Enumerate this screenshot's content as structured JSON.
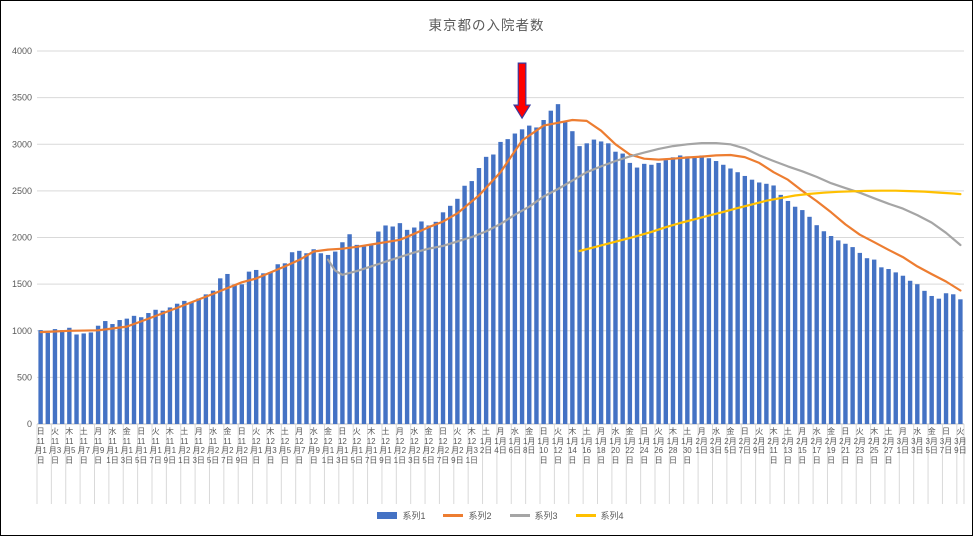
{
  "chart_data": {
    "type": "bar",
    "title": "東京都の入院者数",
    "grid": true,
    "legend_position": "bottom",
    "text_color": "#595959",
    "grid_color": "#D9D9D9",
    "axis_color": "#BFBFBF",
    "ylim": [
      0,
      4000
    ],
    "y_tick_labels": [
      "0",
      "500",
      "1000",
      "1500",
      "2000",
      "2500",
      "3000",
      "3500",
      "4000"
    ],
    "n_categories": 129,
    "x_label_every": 2,
    "x_labels": [
      {
        "w": "日",
        "d": "11月1日"
      },
      {
        "w": "火",
        "d": "11月3日"
      },
      {
        "w": "木",
        "d": "11月5日"
      },
      {
        "w": "土",
        "d": "11月7日"
      },
      {
        "w": "月",
        "d": "11月9日"
      },
      {
        "w": "水",
        "d": "11月11日"
      },
      {
        "w": "金",
        "d": "11月13日"
      },
      {
        "w": "日",
        "d": "11月15日"
      },
      {
        "w": "火",
        "d": "11月17日"
      },
      {
        "w": "木",
        "d": "11月19日"
      },
      {
        "w": "土",
        "d": "11月21日"
      },
      {
        "w": "月",
        "d": "11月23日"
      },
      {
        "w": "水",
        "d": "11月25日"
      },
      {
        "w": "金",
        "d": "11月27日"
      },
      {
        "w": "日",
        "d": "11月29日"
      },
      {
        "w": "火",
        "d": "12月1日"
      },
      {
        "w": "木",
        "d": "12月3日"
      },
      {
        "w": "土",
        "d": "12月5日"
      },
      {
        "w": "月",
        "d": "12月7日"
      },
      {
        "w": "水",
        "d": "12月9日"
      },
      {
        "w": "金",
        "d": "12月11日"
      },
      {
        "w": "日",
        "d": "12月13日"
      },
      {
        "w": "火",
        "d": "12月15日"
      },
      {
        "w": "木",
        "d": "12月17日"
      },
      {
        "w": "土",
        "d": "12月19日"
      },
      {
        "w": "月",
        "d": "12月21日"
      },
      {
        "w": "水",
        "d": "12月23日"
      },
      {
        "w": "金",
        "d": "12月25日"
      },
      {
        "w": "日",
        "d": "12月27日"
      },
      {
        "w": "火",
        "d": "12月29日"
      },
      {
        "w": "木",
        "d": "12月31日"
      },
      {
        "w": "土",
        "d": "1月2日"
      },
      {
        "w": "月",
        "d": "1月4日"
      },
      {
        "w": "水",
        "d": "1月6日"
      },
      {
        "w": "金",
        "d": "1月8日"
      },
      {
        "w": "日",
        "d": "1月10日"
      },
      {
        "w": "火",
        "d": "1月12日"
      },
      {
        "w": "木",
        "d": "1月14日"
      },
      {
        "w": "土",
        "d": "1月16日"
      },
      {
        "w": "月",
        "d": "1月18日"
      },
      {
        "w": "水",
        "d": "1月20日"
      },
      {
        "w": "金",
        "d": "1月22日"
      },
      {
        "w": "日",
        "d": "1月24日"
      },
      {
        "w": "火",
        "d": "1月26日"
      },
      {
        "w": "木",
        "d": "1月28日"
      },
      {
        "w": "土",
        "d": "1月30日"
      },
      {
        "w": "月",
        "d": "2月1日"
      },
      {
        "w": "水",
        "d": "2月3日"
      },
      {
        "w": "金",
        "d": "2月5日"
      },
      {
        "w": "日",
        "d": "2月7日"
      },
      {
        "w": "火",
        "d": "2月9日"
      },
      {
        "w": "木",
        "d": "2月11日"
      },
      {
        "w": "土",
        "d": "2月13日"
      },
      {
        "w": "月",
        "d": "2月15日"
      },
      {
        "w": "水",
        "d": "2月17日"
      },
      {
        "w": "金",
        "d": "2月19日"
      },
      {
        "w": "日",
        "d": "2月21日"
      },
      {
        "w": "火",
        "d": "2月23日"
      },
      {
        "w": "木",
        "d": "2月25日"
      },
      {
        "w": "土",
        "d": "2月27日"
      },
      {
        "w": "月",
        "d": "3月1日"
      },
      {
        "w": "水",
        "d": "3月3日"
      },
      {
        "w": "金",
        "d": "3月5日"
      },
      {
        "w": "日",
        "d": "3月7日"
      },
      {
        "w": "火",
        "d": "3月9日"
      }
    ],
    "series": [
      {
        "name": "系列1",
        "type": "bar",
        "color": "#4472C4",
        "values": [
          1007,
          978,
          1018,
          1007,
          1032,
          960,
          971,
          982,
          1054,
          1104,
          1072,
          1115,
          1130,
          1160,
          1145,
          1190,
          1225,
          1215,
          1250,
          1290,
          1320,
          1310,
          1345,
          1390,
          1430,
          1562,
          1609,
          1497,
          1498,
          1634,
          1652,
          1616,
          1627,
          1713,
          1723,
          1842,
          1857,
          1831,
          1874,
          1831,
          1813,
          1849,
          1949,
          2035,
          1921,
          1903,
          1928,
          2064,
          2129,
          2118,
          2154,
          2082,
          2107,
          2172,
          2129,
          2168,
          2270,
          2340,
          2415,
          2555,
          2605,
          2745,
          2865,
          2890,
          3025,
          3055,
          3115,
          3160,
          3200,
          3180,
          3260,
          3360,
          3430,
          3240,
          3140,
          2980,
          3010,
          3050,
          3030,
          3010,
          2920,
          2900,
          2800,
          2750,
          2790,
          2780,
          2800,
          2830,
          2860,
          2880,
          2870,
          2860,
          2880,
          2850,
          2820,
          2780,
          2740,
          2700,
          2660,
          2620,
          2590,
          2576,
          2558,
          2457,
          2392,
          2330,
          2294,
          2222,
          2132,
          2067,
          2016,
          1969,
          1933,
          1897,
          1835,
          1778,
          1763,
          1680,
          1662,
          1626,
          1590,
          1536,
          1499,
          1428,
          1373,
          1344,
          1402,
          1391,
          1337
        ]
      },
      {
        "name": "系列2",
        "type": "line",
        "color": "#ED7D31",
        "points": [
          [
            0,
            985
          ],
          [
            4,
            1000
          ],
          [
            8,
            1005
          ],
          [
            12,
            1045
          ],
          [
            14,
            1100
          ],
          [
            19,
            1245
          ],
          [
            24,
            1395
          ],
          [
            28,
            1520
          ],
          [
            30,
            1560
          ],
          [
            34,
            1690
          ],
          [
            36,
            1760
          ],
          [
            38,
            1850
          ],
          [
            40,
            1870
          ],
          [
            42,
            1880
          ],
          [
            44,
            1900
          ],
          [
            46,
            1925
          ],
          [
            48,
            1950
          ],
          [
            50,
            1975
          ],
          [
            52,
            2040
          ],
          [
            54,
            2110
          ],
          [
            56,
            2170
          ],
          [
            58,
            2260
          ],
          [
            61,
            2450
          ],
          [
            64,
            2700
          ],
          [
            67,
            3040
          ],
          [
            70,
            3200
          ],
          [
            72,
            3230
          ],
          [
            74,
            3260
          ],
          [
            76,
            3250
          ],
          [
            78,
            3145
          ],
          [
            80,
            3000
          ],
          [
            82,
            2890
          ],
          [
            84,
            2845
          ],
          [
            86,
            2835
          ],
          [
            88,
            2845
          ],
          [
            90,
            2858
          ],
          [
            92,
            2868
          ],
          [
            94,
            2880
          ],
          [
            96,
            2885
          ],
          [
            98,
            2862
          ],
          [
            100,
            2800
          ],
          [
            102,
            2700
          ],
          [
            104,
            2620
          ],
          [
            106,
            2500
          ],
          [
            108,
            2390
          ],
          [
            110,
            2270
          ],
          [
            112,
            2140
          ],
          [
            114,
            2030
          ],
          [
            116,
            1950
          ],
          [
            118,
            1868
          ],
          [
            120,
            1790
          ],
          [
            122,
            1690
          ],
          [
            124,
            1608
          ],
          [
            126,
            1528
          ],
          [
            128,
            1432
          ]
        ]
      },
      {
        "name": "系列3",
        "type": "line",
        "color": "#A5A5A5",
        "points": [
          [
            40,
            1762
          ],
          [
            41,
            1645
          ],
          [
            42,
            1600
          ],
          [
            44,
            1640
          ],
          [
            46,
            1690
          ],
          [
            48,
            1740
          ],
          [
            50,
            1790
          ],
          [
            52,
            1840
          ],
          [
            54,
            1880
          ],
          [
            56,
            1910
          ],
          [
            58,
            1958
          ],
          [
            60,
            2005
          ],
          [
            62,
            2065
          ],
          [
            64,
            2145
          ],
          [
            66,
            2245
          ],
          [
            68,
            2330
          ],
          [
            70,
            2440
          ],
          [
            72,
            2520
          ],
          [
            74,
            2610
          ],
          [
            76,
            2700
          ],
          [
            78,
            2762
          ],
          [
            80,
            2820
          ],
          [
            82,
            2870
          ],
          [
            84,
            2910
          ],
          [
            86,
            2950
          ],
          [
            88,
            2980
          ],
          [
            90,
            3000
          ],
          [
            92,
            3012
          ],
          [
            94,
            3012
          ],
          [
            96,
            3000
          ],
          [
            98,
            2955
          ],
          [
            100,
            2882
          ],
          [
            102,
            2820
          ],
          [
            104,
            2762
          ],
          [
            106,
            2710
          ],
          [
            108,
            2650
          ],
          [
            110,
            2582
          ],
          [
            112,
            2530
          ],
          [
            114,
            2480
          ],
          [
            116,
            2420
          ],
          [
            118,
            2362
          ],
          [
            120,
            2310
          ],
          [
            122,
            2240
          ],
          [
            124,
            2160
          ],
          [
            126,
            2050
          ],
          [
            128,
            1920
          ]
        ]
      },
      {
        "name": "系列4",
        "type": "line",
        "color": "#FFC000",
        "points": [
          [
            75,
            1855
          ],
          [
            77,
            1895
          ],
          [
            79,
            1935
          ],
          [
            81,
            1975
          ],
          [
            83,
            2015
          ],
          [
            85,
            2060
          ],
          [
            87,
            2110
          ],
          [
            89,
            2155
          ],
          [
            91,
            2195
          ],
          [
            93,
            2235
          ],
          [
            95,
            2275
          ],
          [
            97,
            2315
          ],
          [
            99,
            2355
          ],
          [
            101,
            2395
          ],
          [
            103,
            2422
          ],
          [
            105,
            2450
          ],
          [
            107,
            2468
          ],
          [
            109,
            2480
          ],
          [
            111,
            2490
          ],
          [
            113,
            2495
          ],
          [
            115,
            2500
          ],
          [
            117,
            2502
          ],
          [
            119,
            2502
          ],
          [
            121,
            2498
          ],
          [
            123,
            2492
          ],
          [
            125,
            2482
          ],
          [
            127,
            2472
          ],
          [
            128,
            2465
          ]
        ]
      }
    ],
    "annotation": {
      "shape": "down-arrow",
      "category_index": 67,
      "value_top": 3870,
      "value_tip": 3280,
      "fill": "#FF0000",
      "stroke": "#3A3A9E"
    },
    "legend": [
      {
        "label": "系列1",
        "color": "#4472C4",
        "swatch": "bar"
      },
      {
        "label": "系列2",
        "color": "#ED7D31",
        "swatch": "line"
      },
      {
        "label": "系列3",
        "color": "#A5A5A5",
        "swatch": "line"
      },
      {
        "label": "系列4",
        "color": "#FFC000",
        "swatch": "line"
      }
    ]
  }
}
